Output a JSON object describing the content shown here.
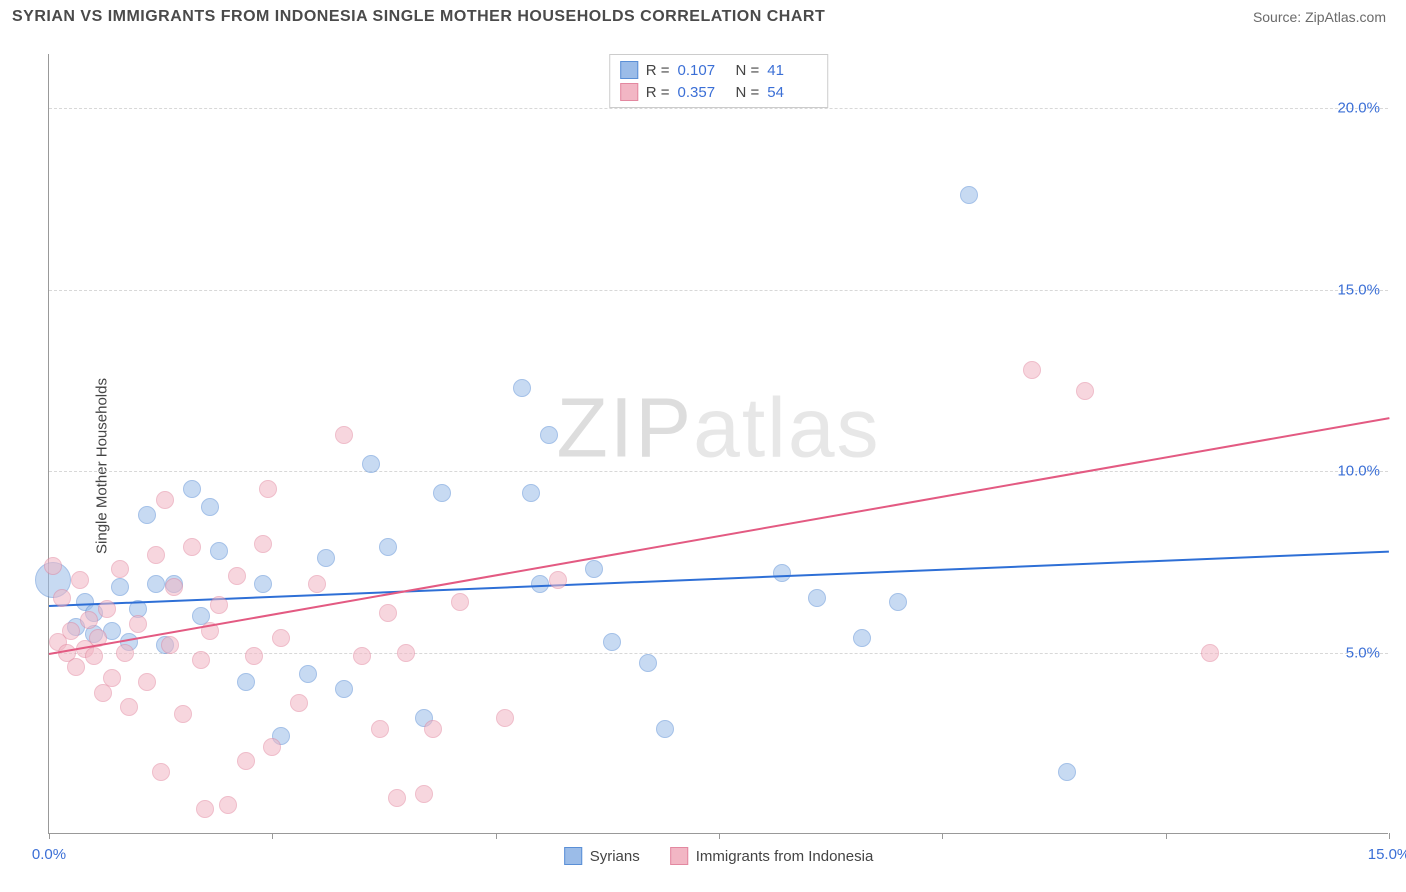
{
  "title": "SYRIAN VS IMMIGRANTS FROM INDONESIA SINGLE MOTHER HOUSEHOLDS CORRELATION CHART",
  "source": "Source: ZipAtlas.com",
  "ylabel": "Single Mother Households",
  "watermark_a": "ZIP",
  "watermark_b": "atlas",
  "chart": {
    "type": "scatter",
    "xlim": [
      0,
      15
    ],
    "ylim": [
      0,
      21.5
    ],
    "xtick_positions": [
      0,
      2.5,
      5,
      7.5,
      10,
      12.5,
      15
    ],
    "xtick_labels": [
      "0.0%",
      "",
      "",
      "",
      "",
      "",
      "15.0%"
    ],
    "ytick_positions": [
      5,
      10,
      15,
      20
    ],
    "ytick_labels": [
      "5.0%",
      "10.0%",
      "15.0%",
      "20.0%"
    ],
    "grid_color": "#d8d8d8",
    "axis_color": "#999999",
    "background": "#ffffff",
    "tick_text_color": "#3b6fd6",
    "label_text_color": "#444444",
    "point_radius": 9,
    "point_opacity": 0.55,
    "series": [
      {
        "name": "Syrians",
        "fill": "#9bbce8",
        "stroke": "#5a8fd6",
        "trend_color": "#2e6fd6",
        "r_label": "R =",
        "r_value": "0.107",
        "n_label": "N =",
        "n_value": "41",
        "trend": {
          "x1": 0,
          "y1": 6.3,
          "x2": 15,
          "y2": 7.8
        },
        "points": [
          [
            0.05,
            7.0,
            18
          ],
          [
            0.3,
            5.7,
            9
          ],
          [
            0.4,
            6.4,
            9
          ],
          [
            0.5,
            5.5,
            9
          ],
          [
            0.5,
            6.1,
            9
          ],
          [
            0.7,
            5.6,
            9
          ],
          [
            0.8,
            6.8,
            9
          ],
          [
            0.9,
            5.3,
            9
          ],
          [
            1.0,
            6.2,
            9
          ],
          [
            1.1,
            8.8,
            9
          ],
          [
            1.2,
            6.9,
            9
          ],
          [
            1.3,
            5.2,
            9
          ],
          [
            1.4,
            6.9,
            9
          ],
          [
            1.6,
            9.5,
            9
          ],
          [
            1.7,
            6.0,
            9
          ],
          [
            1.8,
            9.0,
            9
          ],
          [
            1.9,
            7.8,
            9
          ],
          [
            2.2,
            4.2,
            9
          ],
          [
            2.4,
            6.9,
            9
          ],
          [
            2.6,
            2.7,
            9
          ],
          [
            2.9,
            4.4,
            9
          ],
          [
            3.1,
            7.6,
            9
          ],
          [
            3.3,
            4.0,
            9
          ],
          [
            3.6,
            10.2,
            9
          ],
          [
            3.8,
            7.9,
            9
          ],
          [
            4.2,
            3.2,
            9
          ],
          [
            4.4,
            9.4,
            9
          ],
          [
            5.3,
            12.3,
            9
          ],
          [
            5.4,
            9.4,
            9
          ],
          [
            5.5,
            6.9,
            9
          ],
          [
            5.6,
            11.0,
            9
          ],
          [
            6.1,
            7.3,
            9
          ],
          [
            6.3,
            5.3,
            9
          ],
          [
            6.7,
            4.7,
            9
          ],
          [
            6.9,
            2.9,
            9
          ],
          [
            8.2,
            7.2,
            9
          ],
          [
            8.6,
            6.5,
            9
          ],
          [
            9.1,
            5.4,
            9
          ],
          [
            9.5,
            6.4,
            9
          ],
          [
            10.3,
            17.6,
            9
          ],
          [
            11.4,
            1.7,
            9
          ]
        ]
      },
      {
        "name": "Immigrants from Indonesia",
        "fill": "#f2b6c4",
        "stroke": "#e388a0",
        "trend_color": "#e35a82",
        "r_label": "R =",
        "r_value": "0.357",
        "n_label": "N =",
        "n_value": "54",
        "trend": {
          "x1": 0,
          "y1": 5.0,
          "x2": 15,
          "y2": 11.5
        },
        "points": [
          [
            0.05,
            7.4,
            9
          ],
          [
            0.1,
            5.3,
            9
          ],
          [
            0.15,
            6.5,
            9
          ],
          [
            0.2,
            5.0,
            9
          ],
          [
            0.25,
            5.6,
            9
          ],
          [
            0.3,
            4.6,
            9
          ],
          [
            0.35,
            7.0,
            9
          ],
          [
            0.4,
            5.1,
            9
          ],
          [
            0.45,
            5.9,
            9
          ],
          [
            0.5,
            4.9,
            9
          ],
          [
            0.55,
            5.4,
            9
          ],
          [
            0.6,
            3.9,
            9
          ],
          [
            0.65,
            6.2,
            9
          ],
          [
            0.7,
            4.3,
            9
          ],
          [
            0.8,
            7.3,
            9
          ],
          [
            0.85,
            5.0,
            9
          ],
          [
            0.9,
            3.5,
            9
          ],
          [
            1.0,
            5.8,
            9
          ],
          [
            1.1,
            4.2,
            9
          ],
          [
            1.2,
            7.7,
            9
          ],
          [
            1.25,
            1.7,
            9
          ],
          [
            1.3,
            9.2,
            9
          ],
          [
            1.35,
            5.2,
            9
          ],
          [
            1.4,
            6.8,
            9
          ],
          [
            1.5,
            3.3,
            9
          ],
          [
            1.6,
            7.9,
            9
          ],
          [
            1.7,
            4.8,
            9
          ],
          [
            1.75,
            0.7,
            9
          ],
          [
            1.8,
            5.6,
            9
          ],
          [
            1.9,
            6.3,
            9
          ],
          [
            2.0,
            0.8,
            9
          ],
          [
            2.1,
            7.1,
            9
          ],
          [
            2.2,
            2.0,
            9
          ],
          [
            2.3,
            4.9,
            9
          ],
          [
            2.4,
            8.0,
            9
          ],
          [
            2.45,
            9.5,
            9
          ],
          [
            2.5,
            2.4,
            9
          ],
          [
            2.6,
            5.4,
            9
          ],
          [
            2.8,
            3.6,
            9
          ],
          [
            3.0,
            6.9,
            9
          ],
          [
            3.3,
            11.0,
            9
          ],
          [
            3.5,
            4.9,
            9
          ],
          [
            3.7,
            2.9,
            9
          ],
          [
            3.8,
            6.1,
            9
          ],
          [
            3.9,
            1.0,
            9
          ],
          [
            4.0,
            5.0,
            9
          ],
          [
            4.2,
            1.1,
            9
          ],
          [
            4.3,
            2.9,
            9
          ],
          [
            4.6,
            6.4,
            9
          ],
          [
            5.1,
            3.2,
            9
          ],
          [
            5.7,
            7.0,
            9
          ],
          [
            11.0,
            12.8,
            9
          ],
          [
            11.6,
            12.2,
            9
          ],
          [
            13.0,
            5.0,
            9
          ]
        ]
      }
    ]
  }
}
